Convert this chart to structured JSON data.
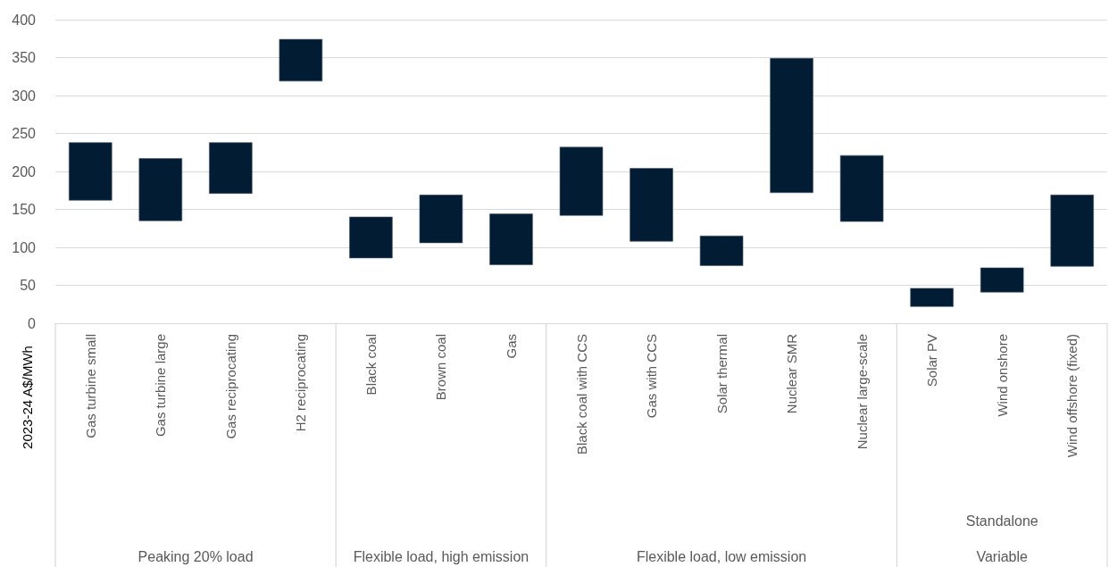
{
  "chart_data": {
    "type": "bar",
    "ylabel": "2023-24 A$/MWh",
    "categories": [
      "Gas turbine small",
      "Gas turbine large",
      "Gas reciprocating",
      "H2 reciprocating",
      "Black coal",
      "Brown coal",
      "Gas",
      "Black coal with CCS",
      "Gas with CCS",
      "Solar thermal",
      "Nuclear SMR",
      "Nuclear large-scale",
      "Solar PV",
      "Wind onshore",
      "Wind offshore (fixed)"
    ],
    "base": [
      162,
      135,
      171,
      319,
      86,
      106,
      77,
      142,
      108,
      76,
      172,
      134,
      22,
      41,
      75
    ],
    "values": [
      76,
      82,
      67,
      55,
      54,
      63,
      67,
      90,
      96,
      39,
      177,
      87,
      24,
      32,
      94
    ],
    "color": "#021d33",
    "ylim": [
      0,
      400
    ],
    "yticks": [
      0,
      50,
      100,
      150,
      200,
      250,
      300,
      350,
      400
    ],
    "grid": "y",
    "annotations": [
      "Peaking 20% load",
      "Flexible load, high emission",
      "Flexible load, low emission",
      "Standalone",
      "Variable"
    ]
  }
}
